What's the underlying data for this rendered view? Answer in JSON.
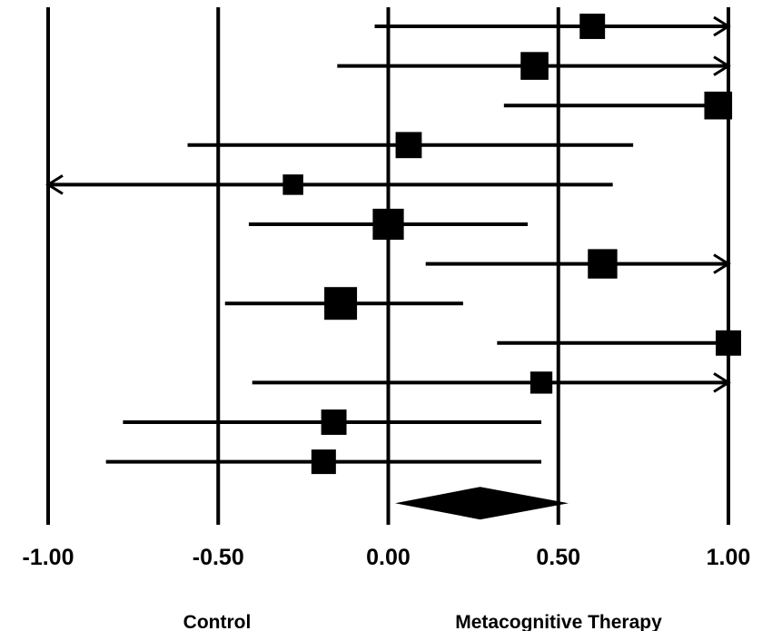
{
  "chart_data": {
    "type": "forest",
    "title": "",
    "xlim": [
      -1.0,
      1.0
    ],
    "xticks": [
      -1.0,
      -0.5,
      0.0,
      0.5,
      1.0
    ],
    "xtick_labels": [
      "-1.00",
      "-0.50",
      "0.00",
      "0.50",
      "1.00"
    ],
    "favor_labels": {
      "left": "Control",
      "right": "Metacognitive Therapy"
    },
    "gridlines": "vertical at each tick",
    "studies": [
      {
        "estimate": 0.6,
        "lower": -0.04,
        "upper": 1.0,
        "weight": 0.55,
        "upper_truncated": true,
        "lower_truncated": false
      },
      {
        "estimate": 0.43,
        "lower": -0.15,
        "upper": 1.0,
        "weight": 0.7,
        "upper_truncated": true,
        "lower_truncated": false
      },
      {
        "estimate": 0.97,
        "lower": 0.34,
        "upper": 1.0,
        "weight": 0.7,
        "upper_truncated": false,
        "lower_truncated": false
      },
      {
        "estimate": 0.06,
        "lower": -0.59,
        "upper": 0.72,
        "weight": 0.6,
        "upper_truncated": false,
        "lower_truncated": false
      },
      {
        "estimate": -0.28,
        "lower": -1.0,
        "upper": 0.66,
        "weight": 0.25,
        "upper_truncated": false,
        "lower_truncated": true
      },
      {
        "estimate": 0.0,
        "lower": -0.41,
        "upper": 0.41,
        "weight": 0.9,
        "upper_truncated": false,
        "lower_truncated": false
      },
      {
        "estimate": 0.63,
        "lower": 0.11,
        "upper": 1.0,
        "weight": 0.8,
        "upper_truncated": true,
        "lower_truncated": false
      },
      {
        "estimate": -0.14,
        "lower": -0.48,
        "upper": 0.22,
        "weight": 1.0,
        "upper_truncated": false,
        "lower_truncated": false
      },
      {
        "estimate": 1.0,
        "lower": 0.32,
        "upper": 1.0,
        "weight": 0.55,
        "upper_truncated": false,
        "lower_truncated": false
      },
      {
        "estimate": 0.45,
        "lower": -0.4,
        "upper": 1.0,
        "weight": 0.35,
        "upper_truncated": true,
        "lower_truncated": false
      },
      {
        "estimate": -0.16,
        "lower": -0.78,
        "upper": 0.45,
        "weight": 0.55,
        "upper_truncated": false,
        "lower_truncated": false
      },
      {
        "estimate": -0.19,
        "lower": -0.83,
        "upper": 0.45,
        "weight": 0.5,
        "upper_truncated": false,
        "lower_truncated": false
      }
    ],
    "summary": {
      "estimate": 0.27,
      "lower": 0.02,
      "upper": 0.53
    }
  }
}
